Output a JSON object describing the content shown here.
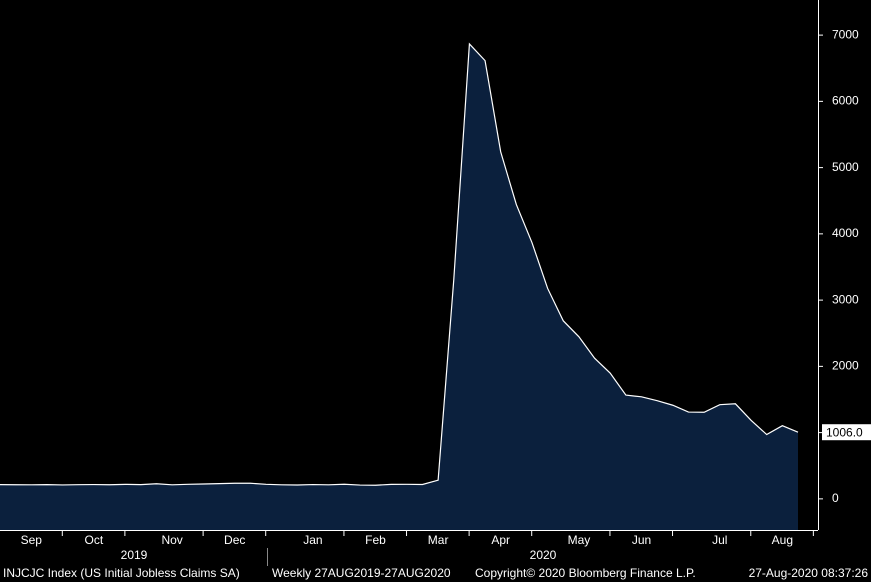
{
  "chart_data": {
    "type": "area",
    "categories": [
      null,
      null,
      "Sep",
      null,
      null,
      null,
      "Oct",
      null,
      null,
      null,
      null,
      "Nov",
      null,
      null,
      null,
      "Dec",
      null,
      null,
      null,
      null,
      "Jan",
      null,
      null,
      null,
      "Feb",
      null,
      null,
      null,
      "Mar",
      null,
      null,
      null,
      "Apr",
      null,
      null,
      null,
      null,
      "May",
      null,
      null,
      null,
      "Jun",
      null,
      null,
      null,
      null,
      "Jul",
      null,
      null,
      null,
      "Aug",
      null
    ],
    "year_labels": [
      "2019",
      "2020"
    ],
    "series": [
      {
        "name": "INJCJC Index (US Initial Jobless Claims SA)",
        "color": "#0b203d",
        "values": [
          215,
          213,
          212,
          215,
          210,
          214,
          216,
          213,
          219,
          215,
          228,
          212,
          220,
          224,
          230,
          236,
          236,
          220,
          212,
          209,
          216,
          212,
          220,
          208,
          206,
          219,
          220,
          217,
          282,
          3307,
          6867,
          6615,
          5237,
          4442,
          3867,
          3176,
          2687,
          2446,
          2123,
          1897,
          1566,
          1540,
          1482,
          1413,
          1310,
          1307,
          1422,
          1435,
          1186,
          971,
          1104,
          1006
        ]
      }
    ],
    "last_value_label": "1006.0",
    "ylim": [
      -470,
      7530
    ],
    "yticks": [
      0,
      1000,
      2000,
      3000,
      4000,
      5000,
      6000,
      7000
    ],
    "footer": [
      "Weekly 27AUG2019-27AUG2020",
      "Copyright© 2020 Bloomberg Finance L.P.",
      "27-Aug-2020 08:37:26"
    ]
  }
}
